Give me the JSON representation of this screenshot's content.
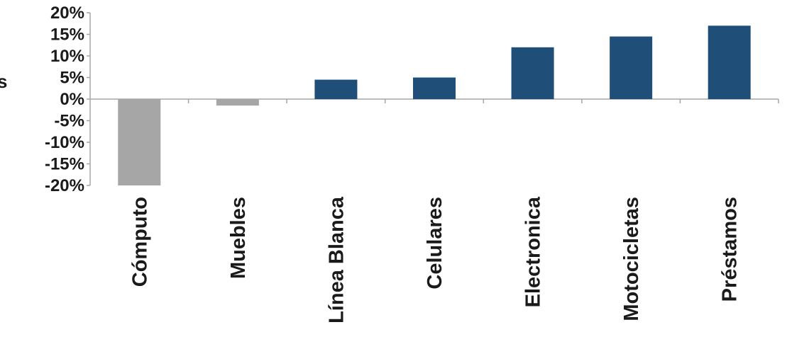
{
  "chart_data": {
    "type": "bar",
    "ylabel": "s",
    "categories": [
      "Cómputo",
      "Muebles",
      "Línea Blanca",
      "Celulares",
      "Electronica",
      "Motocicletas",
      "Préstamos"
    ],
    "values": [
      -20,
      -1.5,
      4.5,
      5,
      12,
      14.5,
      17
    ],
    "ylim": [
      -20,
      20
    ],
    "yticks": [
      20,
      15,
      10,
      5,
      0,
      -5,
      -10,
      -15,
      -20
    ],
    "ytick_labels": [
      "20%",
      "15%",
      "10%",
      "5%",
      "0%",
      "-5%",
      "-10%",
      "-15%",
      "-20%"
    ],
    "grid": false,
    "legend": "none",
    "colors": {
      "positive": "#1f4e79",
      "negative": "#a6a6a6",
      "axis": "#a6a6a6"
    }
  }
}
